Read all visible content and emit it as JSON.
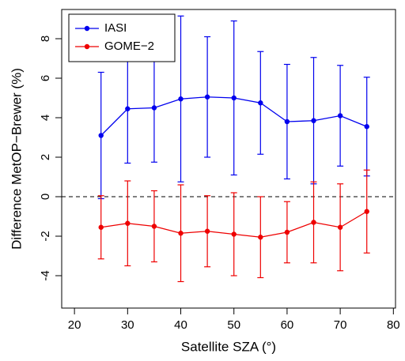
{
  "chart_data": {
    "type": "line",
    "x_label": "Satellite SZA (°)",
    "y_label": "Difference MetOP−Brewer (%)",
    "x": [
      25,
      30,
      35,
      40,
      45,
      50,
      55,
      60,
      65,
      70,
      75
    ],
    "series": [
      {
        "name": "IASI",
        "color": "#0000ee",
        "values": [
          3.1,
          4.45,
          4.5,
          4.95,
          5.05,
          5.0,
          4.75,
          3.8,
          3.85,
          4.1,
          3.55
        ],
        "errors": [
          3.2,
          2.75,
          2.75,
          4.2,
          3.05,
          3.9,
          2.6,
          2.9,
          3.2,
          2.55,
          2.5
        ]
      },
      {
        "name": "GOME−2",
        "color": "#ee0000",
        "values": [
          -1.55,
          -1.35,
          -1.5,
          -1.85,
          -1.75,
          -1.9,
          -2.05,
          -1.8,
          -1.3,
          -1.55,
          -0.75
        ],
        "errors": [
          1.6,
          2.15,
          1.8,
          2.45,
          1.8,
          2.1,
          2.05,
          1.55,
          2.05,
          2.2,
          2.1
        ]
      }
    ],
    "xlim": [
      17.6,
      80.4
    ],
    "xticks": [
      20,
      30,
      40,
      50,
      60,
      70,
      80
    ],
    "ylim": [
      -5.64,
      9.48
    ],
    "yticks": [
      -4,
      -2,
      0,
      2,
      4,
      6,
      8
    ],
    "hline": 0,
    "legend": "top-left"
  }
}
